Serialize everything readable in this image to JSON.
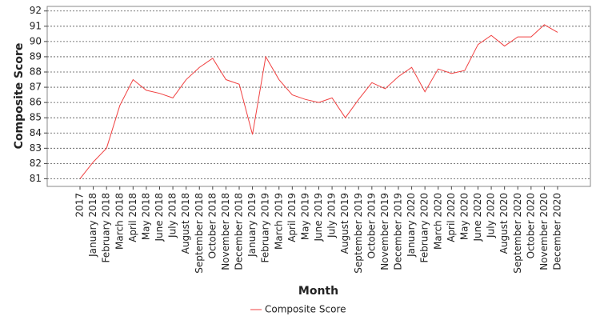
{
  "chart_data": {
    "type": "line",
    "x_label": "Month",
    "y_label": "Composite Score",
    "categories": [
      "2017",
      "January 2018",
      "February 2018",
      "March 2018",
      "April 2018",
      "May 2018",
      "June 2018",
      "July 2018",
      "August 2018",
      "September 2018",
      "October 2018",
      "November 2018",
      "December 2018",
      "January 2019",
      "February 2019",
      "March 2019",
      "April 2019",
      "May 2019",
      "June 2019",
      "July 2019",
      "August 2019",
      "September 2019",
      "October 2019",
      "November 2019",
      "December 2019",
      "January 2020",
      "February 2020",
      "March 2020",
      "April 2020",
      "May 2020",
      "June 2020",
      "July 2020",
      "August 2020",
      "September 2020",
      "October 2020",
      "November 2020",
      "December 2020"
    ],
    "series": [
      {
        "name": "Composite Score",
        "color": "#f04040",
        "values": [
          81.0,
          82.1,
          83.0,
          85.8,
          87.5,
          86.8,
          86.6,
          86.3,
          87.5,
          88.3,
          88.9,
          87.5,
          87.2,
          83.9,
          89.0,
          87.5,
          86.5,
          86.2,
          86.0,
          86.3,
          85.0,
          86.2,
          87.3,
          86.9,
          87.7,
          88.3,
          86.7,
          88.2,
          87.9,
          88.1,
          89.8,
          90.4,
          89.7,
          90.3,
          90.3,
          91.1,
          90.6
        ]
      }
    ],
    "ylim": [
      80.5,
      92.3
    ],
    "yticks": [
      81,
      82,
      83,
      84,
      85,
      86,
      87,
      88,
      89,
      90,
      91,
      92
    ],
    "grid": true,
    "legend": "bottom"
  }
}
